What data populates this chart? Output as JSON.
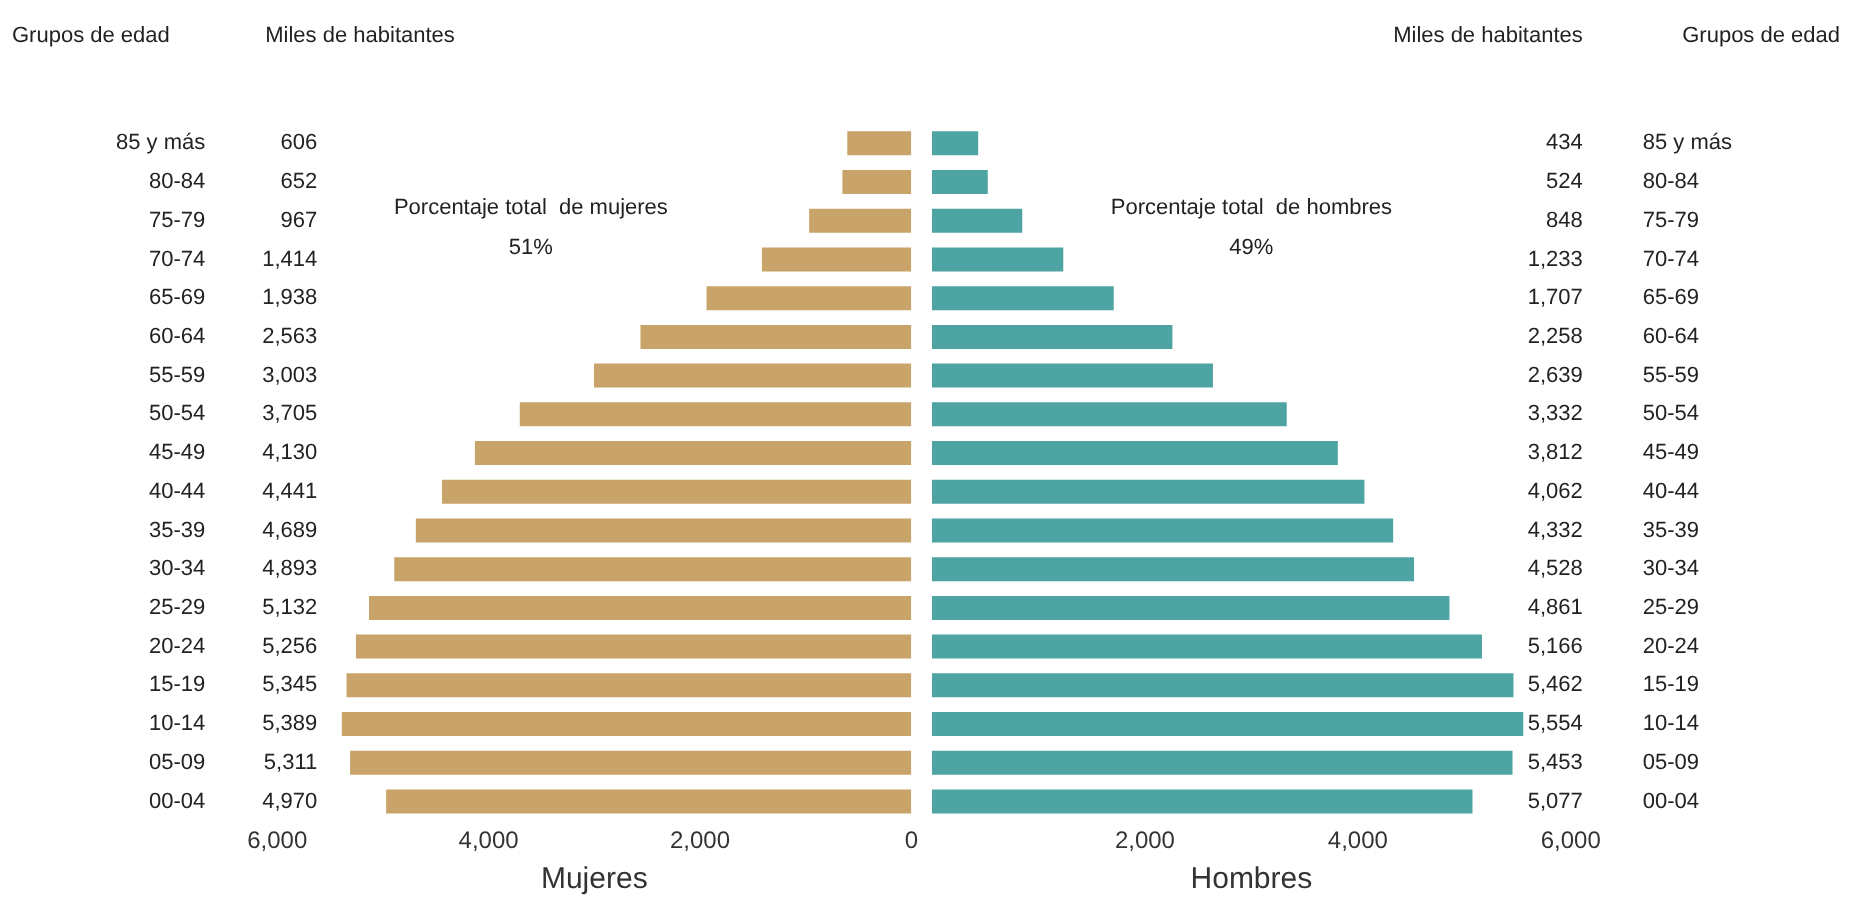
{
  "chart_data": [
    {
      "type": "bar",
      "orientation": "horizontal",
      "xlabel": "Mujeres",
      "categories": [
        "85 y más",
        "80-84",
        "75-79",
        "70-74",
        "65-69",
        "60-64",
        "55-59",
        "50-54",
        "45-49",
        "40-44",
        "35-39",
        "30-34",
        "25-29",
        "20-24",
        "15-19",
        "10-14",
        "05-09",
        "00-04"
      ],
      "series": [
        {
          "color": "#c9a46a",
          "values": [
            606,
            652,
            967,
            1414,
            1938,
            2563,
            3003,
            3705,
            4130,
            4441,
            4689,
            4893,
            5132,
            5256,
            5345,
            5389,
            5311,
            4970
          ],
          "value_labels": [
            "606",
            "652",
            "967",
            "1,414",
            "1,938",
            "2,563",
            "3,003",
            "3,705",
            "4,130",
            "4,441",
            "4,689",
            "4,893",
            "5,132",
            "5,256",
            "5,345",
            "5,389",
            "5,311",
            "4,970"
          ]
        }
      ],
      "xlim": [
        6000,
        0
      ],
      "xticks": [
        {
          "value": 6000,
          "label": "6,000"
        },
        {
          "value": 4000,
          "label": "4,000"
        },
        {
          "value": 2000,
          "label": "2,000"
        },
        0
      ],
      "annotations": [
        "Grupos de edad",
        "Miles de habitantes",
        "Porcentaje total  de mujeres",
        "51%"
      ],
      "grid": false,
      "legend": false
    },
    {
      "type": "bar",
      "orientation": "horizontal",
      "xlabel": "Hombres",
      "categories": [
        "85 y más",
        "80-84",
        "75-79",
        "70-74",
        "65-69",
        "60-64",
        "55-59",
        "50-54",
        "45-49",
        "40-44",
        "35-39",
        "30-34",
        "25-29",
        "20-24",
        "15-19",
        "10-14",
        "05-09",
        "00-04"
      ],
      "series": [
        {
          "color": "#4ea3a3",
          "values": [
            434,
            524,
            848,
            1233,
            1707,
            2258,
            2639,
            3332,
            3812,
            4062,
            4332,
            4528,
            4861,
            5166,
            5462,
            5554,
            5453,
            5077
          ],
          "value_labels": [
            "434",
            "524",
            "848",
            "1,233",
            "1,707",
            "2,258",
            "2,639",
            "3,332",
            "3,812",
            "4,062",
            "4,332",
            "4,528",
            "4,861",
            "5,166",
            "5,462",
            "5,554",
            "5,453",
            "5,077"
          ]
        }
      ],
      "xlim": [
        0,
        6000
      ],
      "xticks": [
        {
          "value": 2000,
          "label": "2,000"
        },
        {
          "value": 4000,
          "label": "4,000"
        },
        {
          "value": 6000,
          "label": "6,000"
        }
      ],
      "annotations": [
        "Miles de habitantes",
        "Grupos de edad",
        "Porcentaje total  de hombres",
        "49%"
      ],
      "grid": false,
      "legend": false
    }
  ]
}
